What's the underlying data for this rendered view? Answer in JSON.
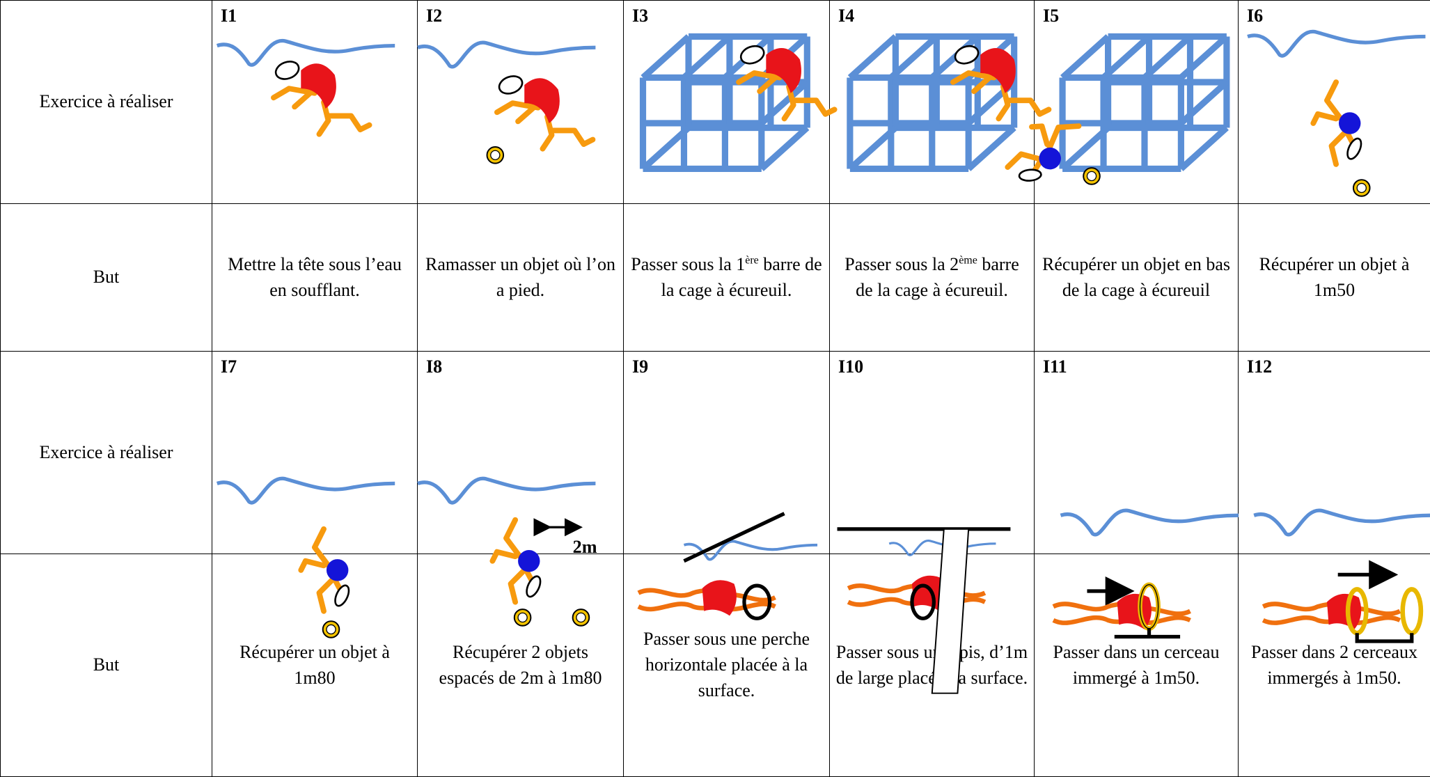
{
  "table": {
    "rows": [
      {
        "label": "Exercice à réaliser",
        "cells": [
          "I1",
          "I2",
          "I3",
          "I4",
          "I5",
          "I6"
        ]
      },
      {
        "label": "But",
        "cells": [
          {
            "text": "Mettre la tête sous l’eau en soufflant."
          },
          {
            "text": "Ramasser un objet où l’on a pied."
          },
          {
            "text": "Passer sous la 1",
            "sup": "ère",
            "rest": " barre de la cage à écureuil."
          },
          {
            "text": "Passer sous la 2",
            "sup": "ème",
            "rest": " barre de la cage à écureuil."
          },
          {
            "text": "Récupérer un objet en bas de la cage à écureuil"
          },
          {
            "text": "Récupérer un objet à 1m50"
          }
        ]
      },
      {
        "label": "Exercice à réaliser",
        "cells": [
          "I7",
          "I8",
          "I9",
          "I10",
          "I11",
          "I12"
        ]
      },
      {
        "label": "But",
        "cells": [
          {
            "text": "Récupérer un objet à 1m80"
          },
          {
            "text": "Récupérer 2 objets espacés de 2m à 1m80"
          },
          {
            "text": "Passer sous une perche horizontale placée à la surface."
          },
          {
            "text": "Passer sous un tapis, d’1m de large placé à la surface."
          },
          {
            "text": "Passer dans un cerceau immergé à 1m50."
          },
          {
            "text": "Passer dans 2 cerceaux immergés à 1m50."
          }
        ]
      }
    ]
  },
  "annotation": "2m"
}
